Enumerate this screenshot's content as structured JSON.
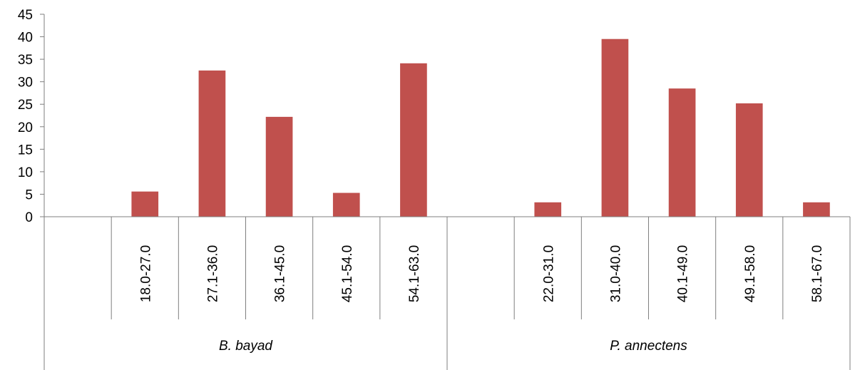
{
  "chart_data": {
    "type": "bar",
    "ylim": [
      0,
      45
    ],
    "y_ticks": [
      "0",
      "5",
      "10",
      "15",
      "20",
      "25",
      "30",
      "35",
      "40",
      "45"
    ],
    "grid": false,
    "legend": "none",
    "bar_color": "#c0504d",
    "axis_color": "#7f7f7f",
    "groups": [
      {
        "name": "B. bayad",
        "categories": [
          "18.0-27.0",
          "27.1-36.0",
          "36.1-45.0",
          "45.1-54.0",
          "54.1-63.0"
        ],
        "values": [
          5.6,
          32.5,
          22.2,
          5.3,
          34.1
        ]
      },
      {
        "name": "P. annectens",
        "categories": [
          "22.0-31.0",
          "31.0-40.0",
          "40.1-49.0",
          "49.1-58.0",
          "58.1-67.0"
        ],
        "values": [
          3.2,
          39.5,
          28.5,
          25.2,
          3.2
        ]
      }
    ]
  }
}
